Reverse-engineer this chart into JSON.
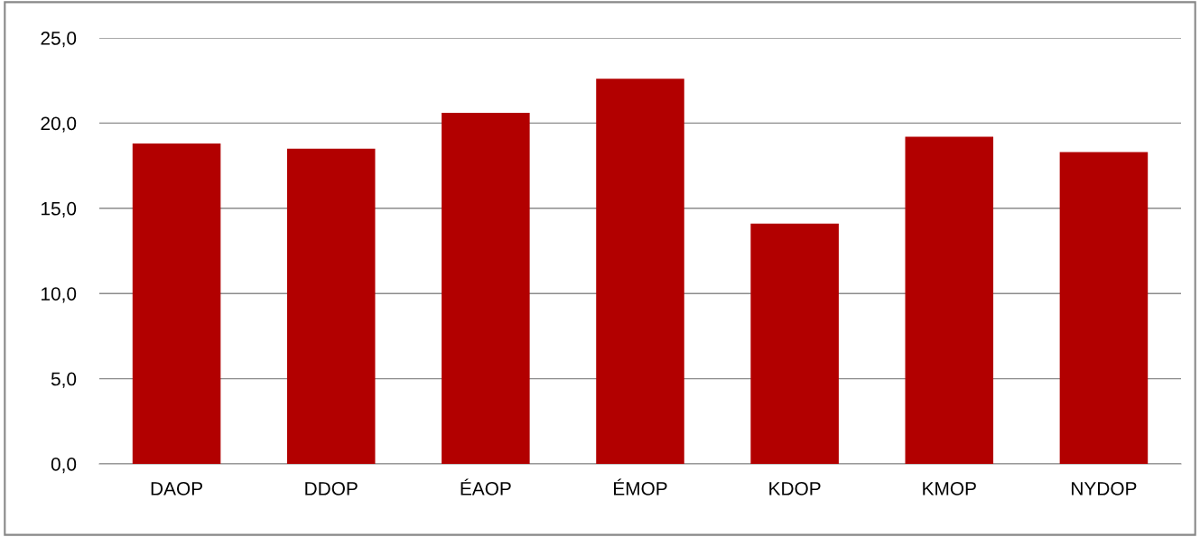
{
  "chart_data": {
    "type": "bar",
    "categories": [
      "DAOP",
      "DDOP",
      "ÉAOP",
      "ÉMOP",
      "KDOP",
      "KMOP",
      "NYDOP"
    ],
    "values": [
      18.8,
      18.5,
      20.6,
      22.6,
      14.1,
      19.2,
      18.3
    ],
    "color": "#b20000",
    "ylim": [
      0,
      25
    ],
    "yticks": [
      {
        "value": 0,
        "label": "0,0"
      },
      {
        "value": 5,
        "label": "5,0"
      },
      {
        "value": 10,
        "label": "10,0"
      },
      {
        "value": 15,
        "label": "15,0"
      },
      {
        "value": 20,
        "label": "20,0"
      },
      {
        "value": 25,
        "label": "25,0"
      }
    ],
    "grid": "y"
  }
}
